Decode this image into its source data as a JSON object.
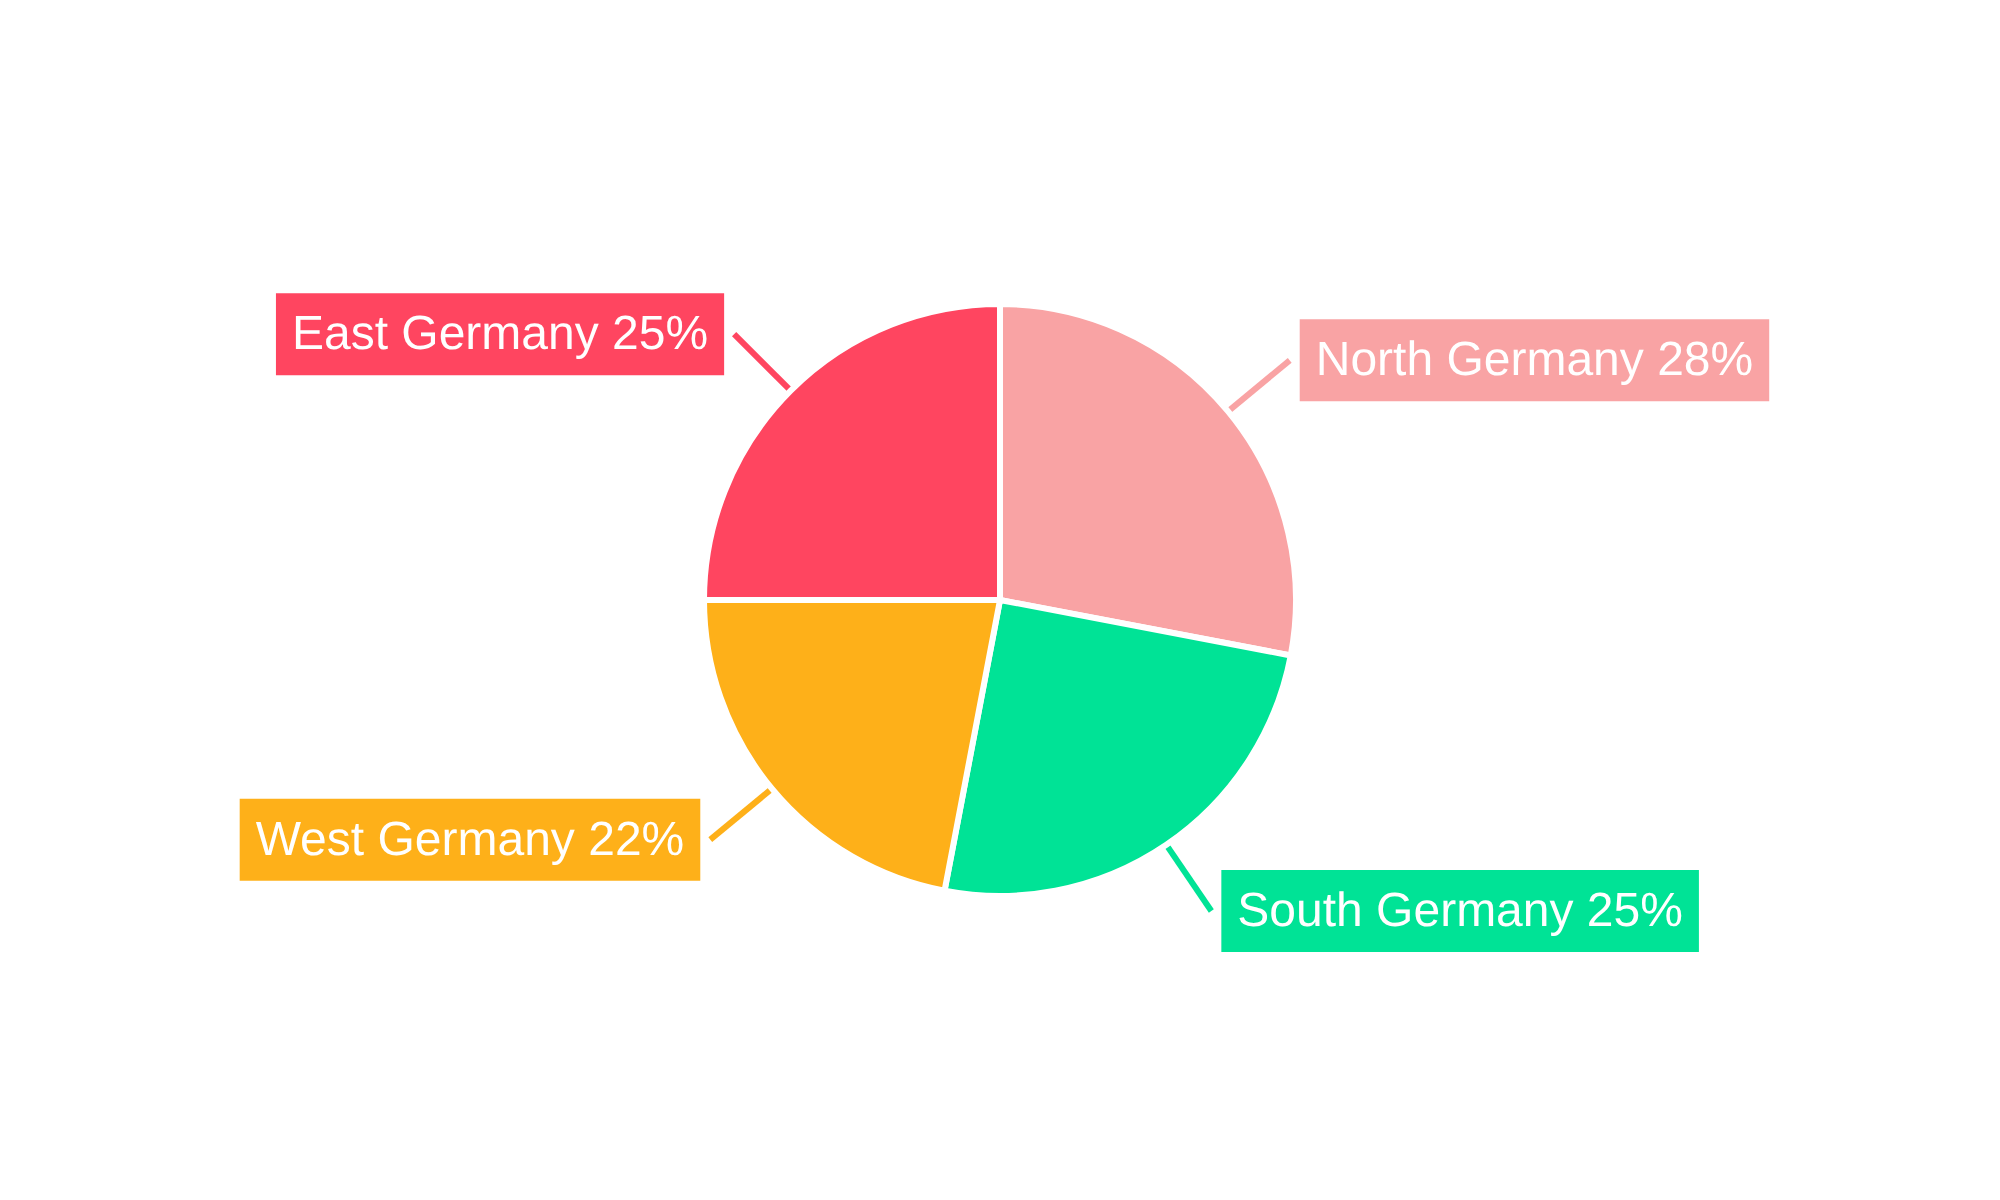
{
  "chart_data": {
    "type": "pie",
    "categories": [
      "North Germany",
      "South Germany",
      "West Germany",
      "East Germany"
    ],
    "values": [
      28,
      25,
      22,
      25
    ],
    "value_labels": [
      "28%",
      "25%",
      "22%",
      "25%"
    ],
    "colors": [
      "#f9a3a4",
      "#00e396",
      "#feb019",
      "#ff4560"
    ],
    "legend": false
  }
}
